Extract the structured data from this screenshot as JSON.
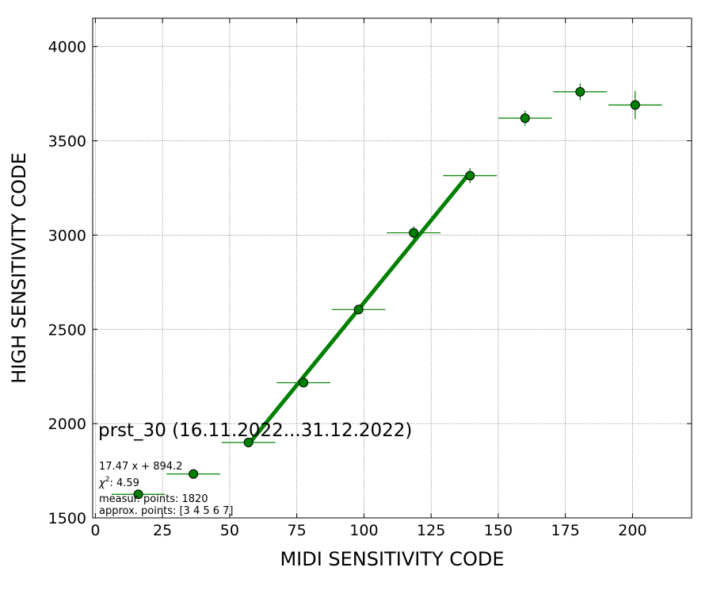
{
  "chart_data": {
    "type": "scatter",
    "xlabel": "MIDI SENSITIVITY CODE",
    "ylabel": "HIGH SENSITIVITY CODE",
    "xlim": [
      -1,
      222
    ],
    "ylim": [
      1500,
      4150
    ],
    "x_ticks": [
      0,
      25,
      50,
      75,
      100,
      125,
      150,
      175,
      200
    ],
    "y_ticks": [
      1500,
      2000,
      2500,
      3000,
      3500,
      4000
    ],
    "grid": true,
    "points": [
      {
        "x": 16,
        "y": 1625,
        "xerr": 10,
        "yerr": 15
      },
      {
        "x": 36.5,
        "y": 1733,
        "xerr": 10,
        "yerr": 15
      },
      {
        "x": 57,
        "y": 1900,
        "xerr": 10,
        "yerr": 15
      },
      {
        "x": 77.5,
        "y": 2217,
        "xerr": 10,
        "yerr": 20
      },
      {
        "x": 98,
        "y": 2605,
        "xerr": 10,
        "yerr": 20
      },
      {
        "x": 118.5,
        "y": 3012,
        "xerr": 10,
        "yerr": 35
      },
      {
        "x": 139.5,
        "y": 3315,
        "xerr": 10,
        "yerr": 40
      },
      {
        "x": 160,
        "y": 3620,
        "xerr": 10,
        "yerr": 40
      },
      {
        "x": 180.5,
        "y": 3760,
        "xerr": 10,
        "yerr": 45
      },
      {
        "x": 201,
        "y": 3690,
        "xerr": 10,
        "yerr": 75
      }
    ],
    "fit": {
      "x_start": 57,
      "x_end": 139.5,
      "slope": 17.47,
      "intercept": 894.2
    },
    "title": "prst_30 (16.11.2022...31.12.2022)",
    "annotations": {
      "equation": "17.47 x + 894.2",
      "chi2_symbol": "χ",
      "chi2_exp": "2",
      "chi2_value": ": 4.59",
      "measured": "measur. points: 1820",
      "approx": "approx. points: [3 4 5 6 7]"
    },
    "colors": {
      "marker": "#008000",
      "marker_edge": "#000000",
      "fit": "#008000",
      "errorbar": "#008000"
    }
  }
}
